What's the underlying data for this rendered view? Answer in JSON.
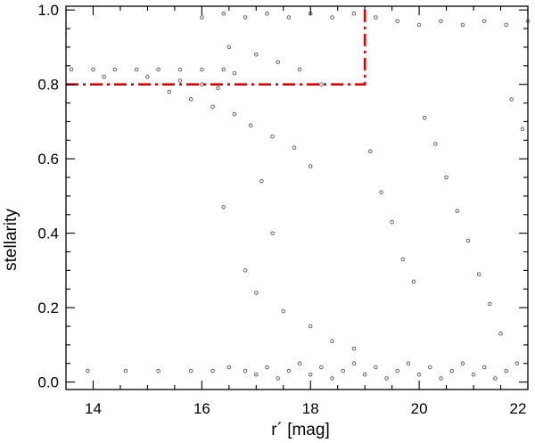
{
  "chart_data": {
    "type": "scatter",
    "title": "",
    "xlabel": "r´ [mag]",
    "ylabel": "stellarity",
    "xlim": [
      13.5,
      22.0
    ],
    "ylim": [
      -0.02,
      1.01
    ],
    "xticks": [
      14,
      16,
      18,
      20,
      22
    ],
    "yticks": [
      0.0,
      0.2,
      0.4,
      0.6,
      0.8,
      1.0
    ],
    "xtick_labels": [
      "14",
      "16",
      "18",
      "20",
      "22"
    ],
    "ytick_labels": [
      "0.0",
      "0.2",
      "0.4",
      "0.6",
      "0.8",
      "1.0"
    ],
    "grid": false,
    "legend": "none",
    "marker": "small open circles",
    "marker_color": "#555555",
    "series": [
      {
        "description_of_density": "dense band of point-like sources at stellarity 0.95-1.0 for r' 16-22; horizontal rows at 0.84 for r' 13.5-16.5; broad scatter between 0.6 and 0.9 for r' 15-19; galaxies clustered near 0.0-0.05 for r' 17-22; uniform scatter filling the right side r' 19-22",
        "points": [
          [
            13.9,
            0.03
          ],
          [
            14.6,
            0.03
          ],
          [
            15.2,
            0.03
          ],
          [
            15.8,
            0.03
          ],
          [
            16.2,
            0.03
          ],
          [
            16.5,
            0.04
          ],
          [
            16.8,
            0.03
          ],
          [
            17.0,
            0.02
          ],
          [
            17.2,
            0.04
          ],
          [
            17.4,
            0.01
          ],
          [
            17.6,
            0.03
          ],
          [
            17.8,
            0.05
          ],
          [
            18.0,
            0.02
          ],
          [
            18.2,
            0.04
          ],
          [
            18.4,
            0.01
          ],
          [
            18.6,
            0.03
          ],
          [
            18.8,
            0.05
          ],
          [
            19.0,
            0.02
          ],
          [
            19.2,
            0.04
          ],
          [
            19.4,
            0.01
          ],
          [
            19.6,
            0.03
          ],
          [
            19.8,
            0.05
          ],
          [
            20.0,
            0.02
          ],
          [
            20.2,
            0.04
          ],
          [
            20.4,
            0.01
          ],
          [
            20.6,
            0.03
          ],
          [
            20.8,
            0.05
          ],
          [
            21.0,
            0.02
          ],
          [
            21.2,
            0.04
          ],
          [
            21.4,
            0.01
          ],
          [
            21.6,
            0.03
          ],
          [
            21.8,
            0.05
          ],
          [
            13.6,
            0.84
          ],
          [
            14.0,
            0.84
          ],
          [
            14.4,
            0.84
          ],
          [
            14.8,
            0.84
          ],
          [
            15.2,
            0.84
          ],
          [
            15.6,
            0.84
          ],
          [
            16.0,
            0.84
          ],
          [
            16.4,
            0.84
          ],
          [
            16.6,
            0.83
          ],
          [
            14.2,
            0.82
          ],
          [
            15.0,
            0.82
          ],
          [
            15.6,
            0.81
          ],
          [
            16.0,
            0.8
          ],
          [
            16.3,
            0.79
          ],
          [
            16.0,
            0.98
          ],
          [
            16.4,
            0.99
          ],
          [
            16.8,
            0.98
          ],
          [
            17.2,
            0.99
          ],
          [
            17.6,
            0.98
          ],
          [
            18.0,
            0.99
          ],
          [
            18.4,
            0.98
          ],
          [
            18.8,
            0.99
          ],
          [
            19.2,
            0.98
          ],
          [
            19.6,
            0.97
          ],
          [
            20.0,
            0.96
          ],
          [
            20.4,
            0.97
          ],
          [
            20.8,
            0.96
          ],
          [
            21.2,
            0.97
          ],
          [
            21.6,
            0.96
          ],
          [
            22.0,
            0.97
          ],
          [
            16.5,
            0.9
          ],
          [
            17.0,
            0.88
          ],
          [
            17.4,
            0.86
          ],
          [
            17.8,
            0.84
          ],
          [
            18.2,
            0.8
          ],
          [
            15.4,
            0.78
          ],
          [
            15.8,
            0.76
          ],
          [
            16.2,
            0.74
          ],
          [
            16.6,
            0.72
          ],
          [
            16.9,
            0.69
          ],
          [
            17.3,
            0.66
          ],
          [
            17.7,
            0.63
          ],
          [
            18.0,
            0.58
          ],
          [
            17.1,
            0.54
          ],
          [
            16.4,
            0.47
          ],
          [
            17.3,
            0.4
          ],
          [
            16.8,
            0.3
          ],
          [
            17.0,
            0.24
          ],
          [
            17.5,
            0.19
          ],
          [
            18.0,
            0.15
          ],
          [
            18.4,
            0.11
          ],
          [
            18.8,
            0.09
          ],
          [
            19.1,
            0.62
          ],
          [
            19.3,
            0.51
          ],
          [
            19.5,
            0.43
          ],
          [
            19.7,
            0.33
          ],
          [
            19.9,
            0.27
          ],
          [
            20.1,
            0.71
          ],
          [
            20.3,
            0.64
          ],
          [
            20.5,
            0.55
          ],
          [
            20.7,
            0.46
          ],
          [
            20.9,
            0.38
          ],
          [
            21.1,
            0.29
          ],
          [
            21.3,
            0.21
          ],
          [
            21.5,
            0.13
          ],
          [
            21.7,
            0.76
          ],
          [
            21.9,
            0.68
          ]
        ]
      }
    ],
    "annotations": [
      {
        "type": "dash-dot line",
        "color": "#dd0000",
        "path_data_units": [
          [
            13.5,
            0.8
          ],
          [
            19.0,
            0.8
          ],
          [
            19.0,
            1.01
          ]
        ]
      }
    ]
  }
}
